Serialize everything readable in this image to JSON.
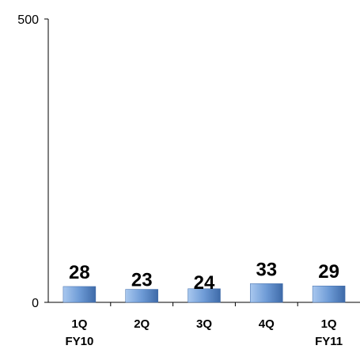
{
  "chart_data": {
    "type": "bar",
    "categories": [
      [
        "1Q",
        "FY10"
      ],
      [
        "2Q"
      ],
      [
        "3Q"
      ],
      [
        "4Q"
      ],
      [
        "1Q",
        "FY11"
      ]
    ],
    "values": [
      28,
      23,
      24,
      33,
      29
    ],
    "data_labels": [
      "28",
      "23",
      "24",
      "33",
      "29"
    ],
    "title": "",
    "xlabel": "",
    "ylabel": "",
    "ylim": [
      0,
      500
    ],
    "y_ticks": [
      "0",
      "500"
    ],
    "grid": false,
    "legend": "none",
    "colors": {
      "bar_light": "#a9c8ef",
      "bar_mid": "#6e9bd6",
      "bar_dark": "#3e6aa8",
      "axis": "#000000"
    }
  }
}
